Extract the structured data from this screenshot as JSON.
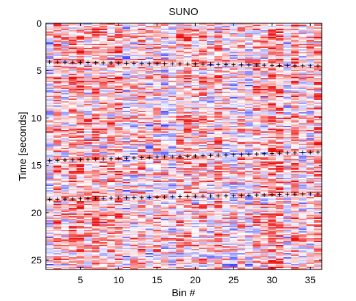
{
  "chart_data": {
    "type": "heatmap",
    "title": "SUNO",
    "xlabel": "Bin #",
    "ylabel": "Time [seconds]",
    "xlim": [
      0.5,
      36.5
    ],
    "ylim": [
      26,
      0
    ],
    "x_ticks": [
      5,
      10,
      15,
      20,
      25,
      30,
      35
    ],
    "y_ticks": [
      0,
      5,
      10,
      15,
      20,
      25
    ],
    "n_bins": 36,
    "colormap": {
      "low": "#3333ff",
      "mid": "#ffffff",
      "high": "#ee1111"
    },
    "marker_symbol": "+",
    "marker_color": "#000000",
    "marker_lines": [
      {
        "start": {
          "bin": 1,
          "time": 4.1
        },
        "end": {
          "bin": 36,
          "time": 4.5
        }
      },
      {
        "start": {
          "bin": 1,
          "time": 14.5
        },
        "end": {
          "bin": 36,
          "time": 13.6
        }
      },
      {
        "start": {
          "bin": 1,
          "time": 18.6
        },
        "end": {
          "bin": 36,
          "time": 18.0
        }
      }
    ]
  }
}
